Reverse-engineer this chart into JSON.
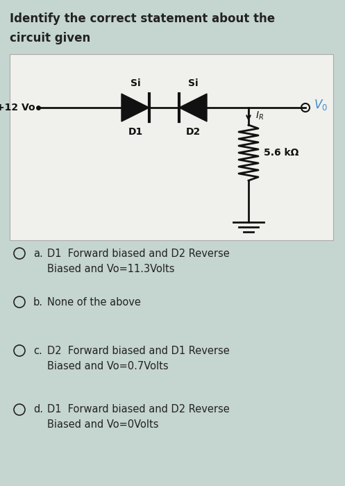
{
  "title_line1": "Identify the correct statement about the",
  "title_line2": "circuit given",
  "title_fontsize": 12,
  "title_fontweight": "bold",
  "bg_outer": "#c5d5d0",
  "bg_inner": "#f0f0ec",
  "options": [
    {
      "letter": "a",
      "line1": "D1  Forward biased and D2 Reverse",
      "line2": "Biased and Vo=11.3Volts"
    },
    {
      "letter": "b",
      "line1": "None of the above",
      "line2": ""
    },
    {
      "letter": "c",
      "line1": "D2  Forward biased and D1 Reverse",
      "line2": "Biased and Vo=0.7Volts"
    },
    {
      "letter": "d",
      "line1": "D1  Forward biased and D2 Reverse",
      "line2": "Biased and Vo=0Volts"
    }
  ],
  "option_fontsize": 10.5,
  "text_color": "#222222",
  "circuit_color": "#111111",
  "vo_color": "#4488cc",
  "lw": 2.0
}
